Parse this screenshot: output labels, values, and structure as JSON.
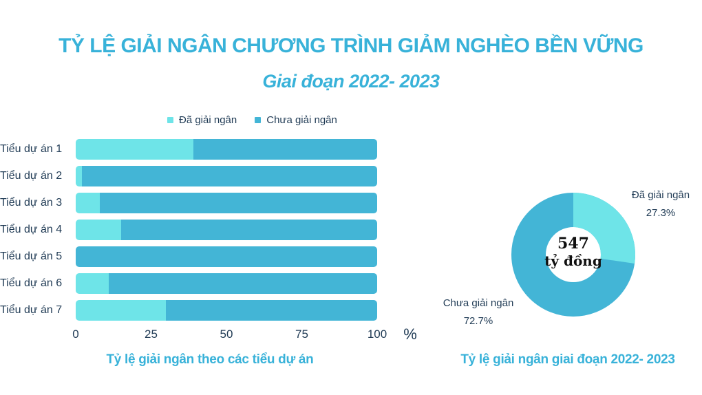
{
  "header": {
    "title": "TỶ LỆ GIẢI NGÂN CHƯƠNG TRÌNH GIẢM NGHÈO BỀN VỮNG",
    "subtitle": "Giai đoạn 2022- 2023"
  },
  "colors": {
    "accent_title": "#38B2D9",
    "series_disbursed": "#6EE4E8",
    "series_remaining": "#43B5D6",
    "label_text": "#1F3A54"
  },
  "legend": {
    "items": [
      {
        "label": "Đã giải ngân",
        "color": "#6EE4E8"
      },
      {
        "label": "Chưa giải ngân",
        "color": "#43B5D6"
      }
    ]
  },
  "chart_data": [
    {
      "type": "bar",
      "orientation": "horizontal",
      "stacked": true,
      "categories": [
        "Tiểu dự án 1",
        "Tiểu dự án 2",
        "Tiểu dự án 3",
        "Tiểu dự án 4",
        "Tiểu dự án 5",
        "Tiểu dự án 6",
        "Tiểu dự án 7"
      ],
      "series": [
        {
          "name": "Đã giải ngân",
          "color": "#6EE4E8",
          "values": [
            39,
            2,
            8,
            15,
            0,
            11,
            30
          ]
        },
        {
          "name": "Chưa giải ngân",
          "color": "#43B5D6",
          "values": [
            61,
            98,
            92,
            85,
            100,
            89,
            70
          ]
        }
      ],
      "xlim": [
        0,
        100
      ],
      "x_ticks": [
        0,
        25,
        50,
        75,
        100
      ],
      "x_tick_labels": [
        "0",
        "25",
        "50",
        "75",
        "100"
      ],
      "x_unit": "%",
      "grid": false,
      "legend_position": "top",
      "caption": "Tỷ lệ giải ngân theo các tiểu dự án"
    },
    {
      "type": "pie",
      "donut": true,
      "start_angle_deg": 0,
      "direction": "clockwise",
      "slices": [
        {
          "label": "Đã giải ngân",
          "value": 27.3,
          "pct_label": "27.3%",
          "color": "#6EE4E8"
        },
        {
          "label": "Chưa giải ngân",
          "value": 72.7,
          "pct_label": "72.7%",
          "color": "#43B5D6"
        }
      ],
      "center_lines": [
        "547",
        "tỷ đồng"
      ],
      "caption": "Tỷ lệ giải ngân giai đoạn 2022- 2023"
    }
  ]
}
